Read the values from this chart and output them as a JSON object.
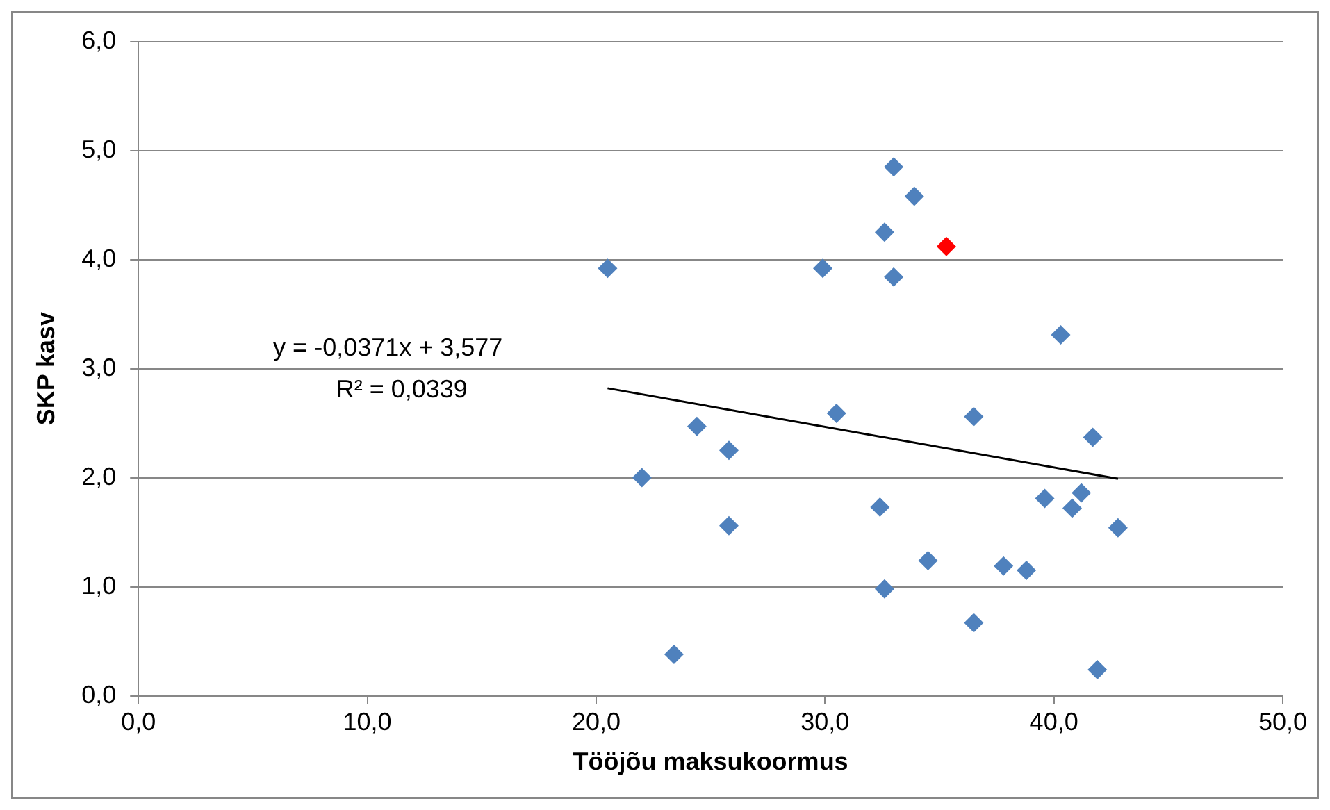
{
  "chart_data": {
    "type": "scatter",
    "xlabel": "Tööjõu maksukoormus",
    "ylabel": "SKP kasv",
    "xlim": [
      0,
      50
    ],
    "xticks": [
      {
        "value": 0,
        "label": "0,0"
      },
      {
        "value": 10,
        "label": "10,0"
      },
      {
        "value": 20,
        "label": "20,0"
      },
      {
        "value": 30,
        "label": "30,0"
      },
      {
        "value": 40,
        "label": "40,0"
      },
      {
        "value": 50,
        "label": "50,0"
      }
    ],
    "ylim": [
      0,
      6
    ],
    "yticks": [
      {
        "value": 0,
        "label": "0,0"
      },
      {
        "value": 1,
        "label": "1,0"
      },
      {
        "value": 2,
        "label": "2,0"
      },
      {
        "value": 3,
        "label": "3,0"
      },
      {
        "value": 4,
        "label": "4,0"
      },
      {
        "value": 5,
        "label": "5,0"
      },
      {
        "value": 6,
        "label": "6,0"
      }
    ],
    "grid": "y",
    "legend": false,
    "marker": "diamond",
    "series": [
      {
        "type": "scatter",
        "color": "#4f81bd",
        "x": [
          20.5,
          22.0,
          23.4,
          24.4,
          25.8,
          25.8,
          29.9,
          30.5,
          32.4,
          32.6,
          32.6,
          33.0,
          33.0,
          33.9,
          34.5,
          35.3,
          36.5,
          36.5,
          37.8,
          38.8,
          39.6,
          40.3,
          40.8,
          41.2,
          41.7,
          41.9,
          42.8
        ],
        "values": [
          3.92,
          2.0,
          0.38,
          2.47,
          2.25,
          1.56,
          3.92,
          2.59,
          1.73,
          4.25,
          0.98,
          4.85,
          3.84,
          4.58,
          1.24,
          4.12,
          2.56,
          0.67,
          1.19,
          1.15,
          1.81,
          3.31,
          1.72,
          1.86,
          2.37,
          0.24,
          1.54
        ],
        "colors": [
          "#4f81bd",
          "#4f81bd",
          "#4f81bd",
          "#4f81bd",
          "#4f81bd",
          "#4f81bd",
          "#4f81bd",
          "#4f81bd",
          "#4f81bd",
          "#4f81bd",
          "#4f81bd",
          "#4f81bd",
          "#4f81bd",
          "#4f81bd",
          "#4f81bd",
          "#ff0000",
          "#4f81bd",
          "#4f81bd",
          "#4f81bd",
          "#4f81bd",
          "#4f81bd",
          "#4f81bd",
          "#4f81bd",
          "#4f81bd",
          "#4f81bd",
          "#4f81bd",
          "#4f81bd"
        ]
      },
      {
        "type": "line",
        "color": "#000000",
        "marker": "none",
        "x": [
          20.5,
          42.8
        ],
        "values": [
          2.82,
          1.99
        ]
      }
    ],
    "annotations": [
      "y = -0,0371x + 3,577",
      "R² = 0,0339"
    ]
  }
}
